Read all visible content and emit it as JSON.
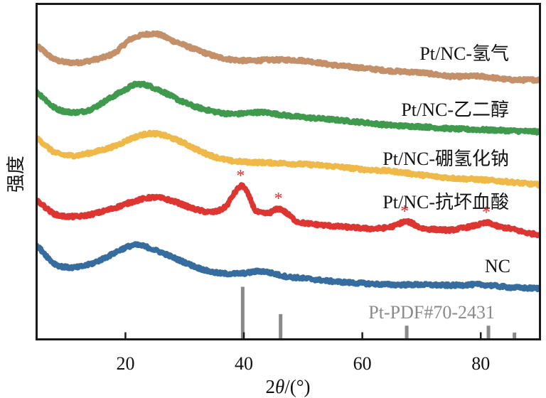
{
  "chart_data": {
    "type": "line",
    "title": "",
    "xlabel": "2θ/(°)",
    "xlabel_parts": {
      "prefix": "2",
      "italic": "θ",
      "suffix": "/(°)"
    },
    "ylabel": "强度",
    "xlim": [
      5,
      90
    ],
    "ylim": [
      0,
      100
    ],
    "y_units": "a.u. (relative intensity, offset stacked)",
    "y_ticks_shown": false,
    "x_ticks": [
      20,
      40,
      60,
      80
    ],
    "x_tick_labels": [
      "20",
      "40",
      "60",
      "80"
    ],
    "grid": false,
    "legend": "inline labels at right end of each curve",
    "series": [
      {
        "name": "Pt/NC-氢气",
        "color": "#c4906a",
        "x": [
          5,
          8,
          11,
          14,
          18,
          21,
          25,
          28,
          32,
          36,
          40,
          45,
          50,
          55,
          60,
          65,
          70,
          75,
          80,
          85,
          90
        ],
        "y": [
          87.3,
          83.5,
          82.5,
          83.1,
          85.2,
          89.6,
          91.1,
          89.0,
          86.3,
          84.0,
          83.1,
          83.3,
          83.1,
          81.8,
          80.9,
          80.0,
          79.5,
          78.4,
          78.4,
          77.4,
          77.4
        ]
      },
      {
        "name": "Pt/NC-乙二醇",
        "color": "#3f9a4e",
        "x": [
          5,
          8,
          11,
          14,
          17,
          20,
          22,
          25,
          30,
          34,
          38,
          43,
          47,
          50,
          55,
          60,
          65,
          70,
          75,
          80,
          85,
          90
        ],
        "y": [
          73.6,
          69.1,
          67.7,
          68.5,
          71.5,
          74.4,
          76.1,
          74.8,
          70.6,
          68.3,
          67.2,
          67.7,
          66.8,
          66.2,
          65.5,
          64.7,
          63.8,
          63.4,
          62.8,
          62.5,
          62.2,
          61.9
        ]
      },
      {
        "name": "Pt/NC-硼氢化钠",
        "color": "#efb94a",
        "x": [
          5,
          8,
          11,
          14,
          18,
          22,
          25,
          29,
          33,
          37,
          40,
          45,
          50,
          55,
          60,
          65,
          70,
          75,
          80,
          85,
          90
        ],
        "y": [
          59.8,
          55.8,
          54.8,
          55.6,
          57.5,
          60.5,
          61.3,
          59.2,
          55.8,
          53.5,
          52.9,
          52.6,
          52.2,
          51.6,
          50.7,
          50.1,
          49.0,
          48.1,
          47.6,
          46.9,
          46.1
        ]
      },
      {
        "name": "Pt/NC-抗坏血酸",
        "color": "#dc3532",
        "x": [
          5,
          8,
          11,
          14,
          18,
          22,
          25,
          28,
          32,
          35,
          37,
          38.5,
          39.8,
          41,
          42,
          44,
          46,
          47.5,
          49,
          52,
          55,
          58,
          62,
          65,
          67.5,
          70,
          72,
          75,
          77,
          79,
          81.3,
          83,
          85,
          88,
          90
        ],
        "y": [
          41.2,
          37.4,
          36.6,
          37.2,
          39.1,
          41.4,
          42.3,
          41.2,
          38.7,
          38.0,
          39.7,
          43.8,
          45.7,
          42.1,
          38.3,
          37.6,
          38.9,
          37.2,
          35.1,
          34.3,
          33.8,
          33.4,
          33.0,
          33.6,
          35.1,
          33.2,
          32.8,
          32.6,
          33.2,
          33.9,
          34.7,
          33.6,
          33.0,
          31.7,
          31.3
        ]
      },
      {
        "name": "NC",
        "color": "#376c9e",
        "x": [
          5,
          8,
          11,
          14,
          17,
          20,
          22,
          25,
          29,
          33,
          36,
          40,
          43,
          47,
          50,
          55,
          60,
          65,
          70,
          75,
          80,
          85,
          90
        ],
        "y": [
          27.7,
          22.6,
          21.4,
          22.4,
          24.7,
          27.3,
          28.1,
          26.6,
          23.7,
          20.9,
          19.7,
          19.7,
          20.3,
          18.8,
          18.2,
          17.3,
          16.7,
          16.3,
          16.3,
          16.1,
          16.3,
          15.5,
          15.2
        ]
      }
    ],
    "peak_markers": {
      "series": "Pt/NC-抗坏血酸",
      "symbol": "*",
      "color": "#dc3532",
      "x": [
        39.8,
        46.2,
        67.5,
        81.3
      ]
    },
    "reference": {
      "name": "Pt-PDF#70-2431",
      "color": "#8a8a8a",
      "type": "stick",
      "x": [
        39.8,
        46.2,
        67.5,
        81.3,
        85.7
      ],
      "relative_intensity": [
        100,
        48,
        26,
        26,
        13
      ]
    }
  }
}
